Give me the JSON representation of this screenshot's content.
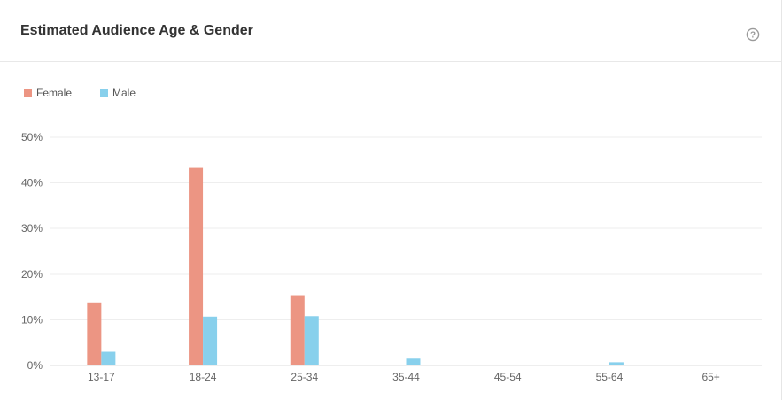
{
  "card": {
    "title": "Estimated Audience Age & Gender",
    "help_icon": "question-circle-icon"
  },
  "colors": {
    "female": "#ec9583",
    "male": "#88d0ec",
    "grid": "#eeeeee",
    "axis": "#dddddd"
  },
  "chart_data": {
    "type": "bar",
    "title": "Estimated Audience Age & Gender",
    "xlabel": "",
    "ylabel": "",
    "categories": [
      "13-17",
      "18-24",
      "25-34",
      "35-44",
      "45-54",
      "55-64",
      "65+"
    ],
    "series": [
      {
        "name": "Female",
        "values": [
          13.8,
          43.3,
          15.4,
          0,
          0,
          0,
          0
        ]
      },
      {
        "name": "Male",
        "values": [
          3.0,
          10.7,
          10.8,
          1.5,
          0,
          0.7,
          0
        ]
      }
    ],
    "ylim": [
      0,
      50
    ],
    "yticks": [
      "0%",
      "10%",
      "20%",
      "30%",
      "40%",
      "50%"
    ],
    "ytick_values": [
      0,
      10,
      20,
      30,
      40,
      50
    ],
    "grid": true,
    "legend": "top-left"
  }
}
